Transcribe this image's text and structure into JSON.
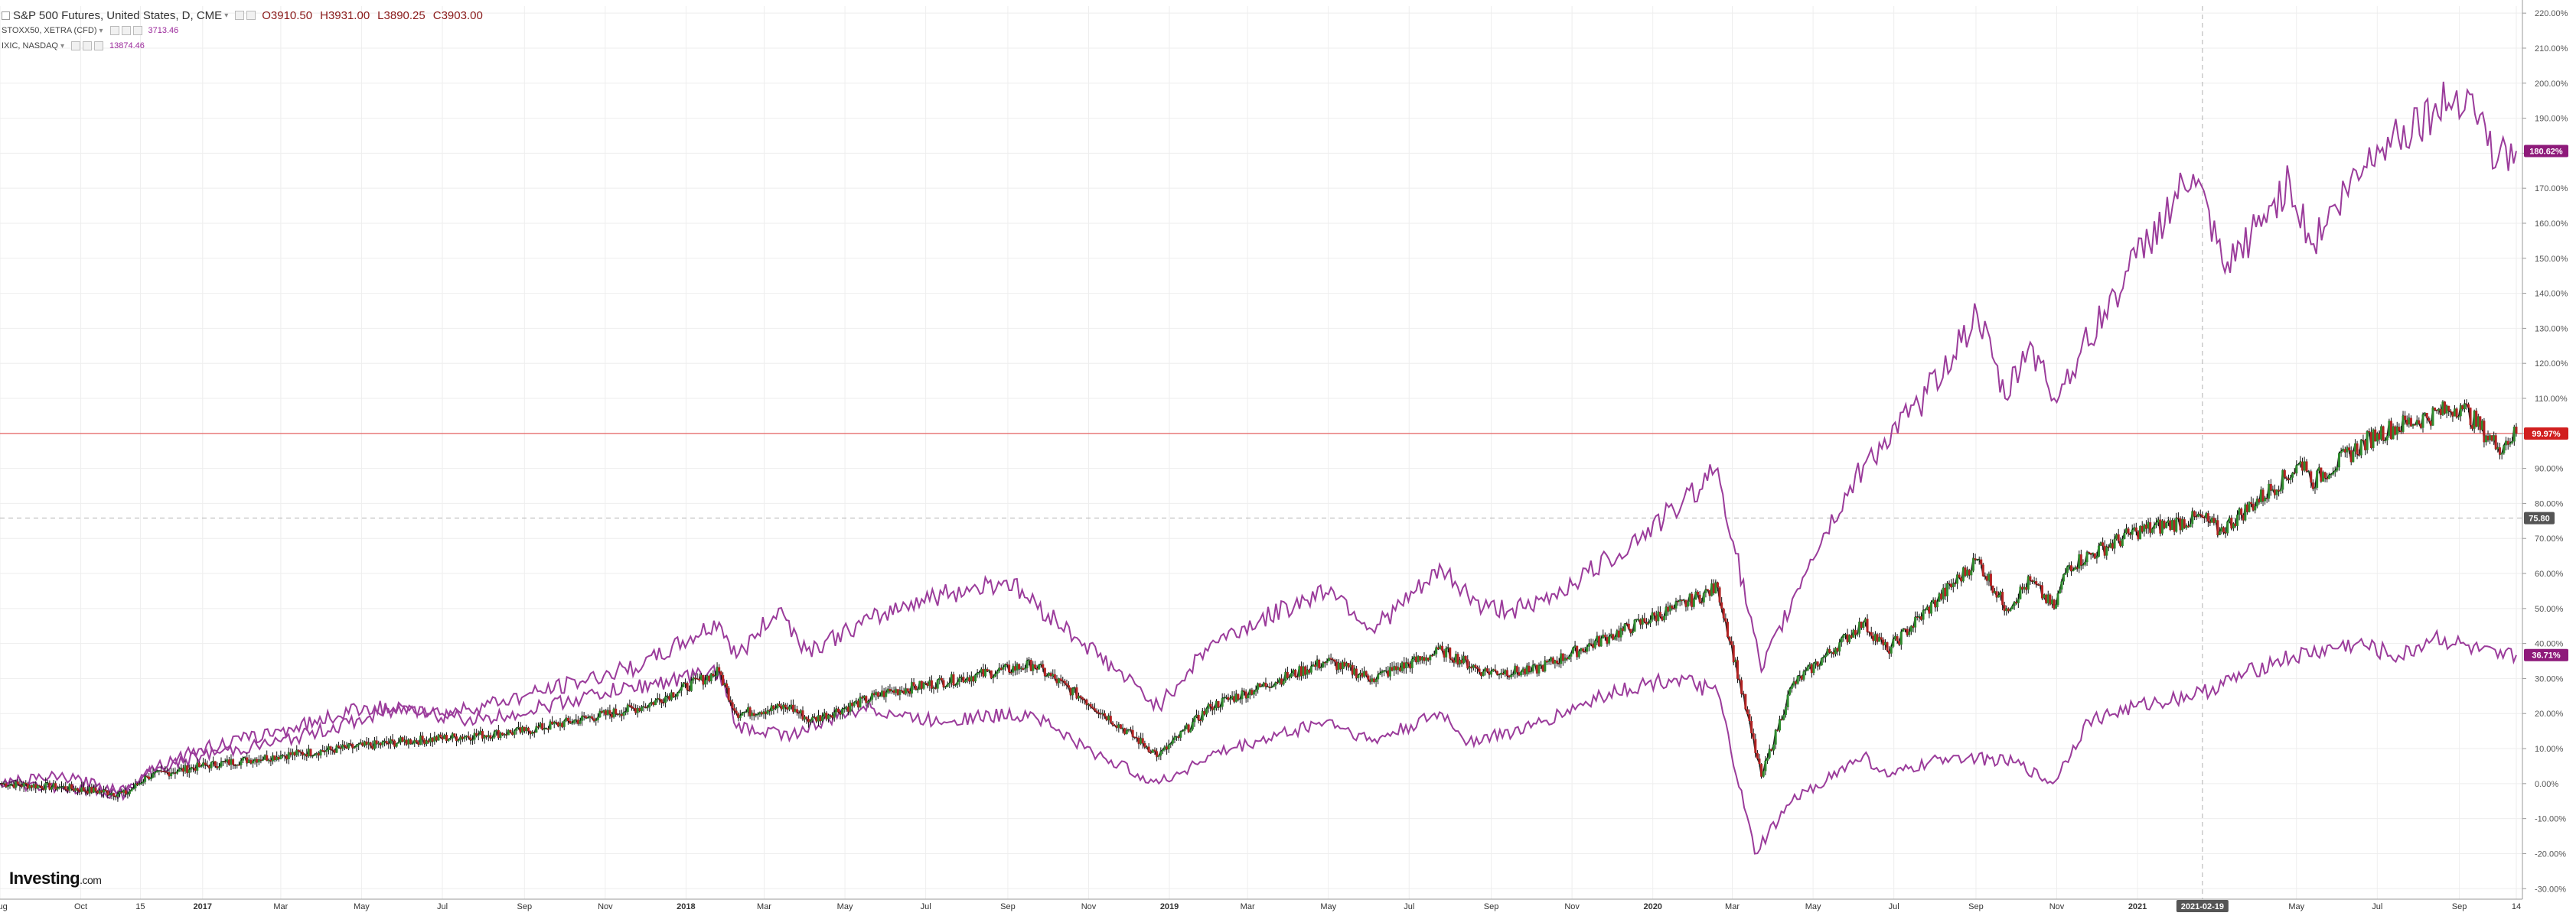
{
  "legend": {
    "main": {
      "title": "S&P 500 Futures, United States, D, CME",
      "open": "O3910.50",
      "high": "H3931.00",
      "low": "L3890.25",
      "close": "C3903.00"
    },
    "series2": {
      "title": "STOXX50, XETRA (CFD)",
      "value": "3713.46"
    },
    "series3": {
      "title": "IXIC, NASDAQ",
      "value": "13874.46"
    }
  },
  "brand": {
    "name": "Investing",
    "suffix": ".com"
  },
  "colors": {
    "main_up": "#2e8b2e",
    "main_down": "#b22222",
    "main_line": "#1a1a1a",
    "compare": "#9b3c9b",
    "price_line": "#e35050",
    "grid": "#eeeeee",
    "tag_red": "#d11f1f",
    "tag_purple": "#8e1a7a",
    "tag_dark": "#555555"
  },
  "chart_data": {
    "type": "line",
    "title": "S&P 500 Futures, United States, D, CME",
    "y_unit": "% change",
    "ylim": [
      -33,
      222
    ],
    "y_ticks": [
      "220.00%",
      "210.00%",
      "200.00%",
      "190.00%",
      "180.00%",
      "170.00%",
      "160.00%",
      "150.00%",
      "140.00%",
      "130.00%",
      "120.00%",
      "110.00%",
      "100.00%",
      "90.00%",
      "80.00%",
      "70.00%",
      "60.00%",
      "50.00%",
      "40.00%",
      "30.00%",
      "20.00%",
      "10.00%",
      "0.00%",
      "-10.00%",
      "-20.00%",
      "-30.00%"
    ],
    "x_range": [
      "2016-08-01",
      "2021-10-14"
    ],
    "x_ticks": [
      {
        "date": "2016-08-01",
        "label": "Aug"
      },
      {
        "date": "2016-10-01",
        "label": "Oct"
      },
      {
        "date": "2016-11-15",
        "label": "15"
      },
      {
        "date": "2017-01-01",
        "label": "2017"
      },
      {
        "date": "2017-03-01",
        "label": "Mar"
      },
      {
        "date": "2017-05-01",
        "label": "May"
      },
      {
        "date": "2017-07-01",
        "label": "Jul"
      },
      {
        "date": "2017-09-01",
        "label": "Sep"
      },
      {
        "date": "2017-11-01",
        "label": "Nov"
      },
      {
        "date": "2018-01-01",
        "label": "2018"
      },
      {
        "date": "2018-03-01",
        "label": "Mar"
      },
      {
        "date": "2018-05-01",
        "label": "May"
      },
      {
        "date": "2018-07-01",
        "label": "Jul"
      },
      {
        "date": "2018-09-01",
        "label": "Sep"
      },
      {
        "date": "2018-11-01",
        "label": "Nov"
      },
      {
        "date": "2019-01-01",
        "label": "2019"
      },
      {
        "date": "2019-03-01",
        "label": "Mar"
      },
      {
        "date": "2019-05-01",
        "label": "May"
      },
      {
        "date": "2019-07-01",
        "label": "Jul"
      },
      {
        "date": "2019-09-01",
        "label": "Sep"
      },
      {
        "date": "2019-11-01",
        "label": "Nov"
      },
      {
        "date": "2020-01-01",
        "label": "2020"
      },
      {
        "date": "2020-03-01",
        "label": "Mar"
      },
      {
        "date": "2020-05-01",
        "label": "May"
      },
      {
        "date": "2020-07-01",
        "label": "Jul"
      },
      {
        "date": "2020-09-01",
        "label": "Sep"
      },
      {
        "date": "2020-11-01",
        "label": "Nov"
      },
      {
        "date": "2021-01-01",
        "label": "2021"
      },
      {
        "date": "2021-05-01",
        "label": "May"
      },
      {
        "date": "2021-07-01",
        "label": "Jul"
      },
      {
        "date": "2021-09-01",
        "label": "Sep"
      },
      {
        "date": "2021-10-14",
        "label": "14"
      }
    ],
    "crosshair": {
      "date": "2021-02-19",
      "label": "2021-02-19",
      "y_value": 75.8,
      "y_label": "75.80"
    },
    "last_value_tags": [
      {
        "series": "IXIC, NASDAQ",
        "label": "180.62%",
        "value": 180.62
      },
      {
        "series": "S&P 500 Futures",
        "label": "99.97%",
        "value": 99.97
      },
      {
        "series": "STOXX50, XETRA (CFD)",
        "label": "36.71%",
        "value": 36.71
      }
    ],
    "series": [
      {
        "name": "S&P 500 Futures, United States, D, CME",
        "style": "candles",
        "points": [
          [
            "2016-08-01",
            0
          ],
          [
            "2016-09-15",
            -1
          ],
          [
            "2016-11-04",
            -3
          ],
          [
            "2016-11-20",
            2
          ],
          [
            "2016-12-31",
            5
          ],
          [
            "2017-03-01",
            8
          ],
          [
            "2017-06-01",
            12
          ],
          [
            "2017-09-01",
            15
          ],
          [
            "2017-11-30",
            22
          ],
          [
            "2018-01-26",
            32
          ],
          [
            "2018-02-08",
            20
          ],
          [
            "2018-03-20",
            22
          ],
          [
            "2018-04-05",
            18
          ],
          [
            "2018-06-01",
            26
          ],
          [
            "2018-09-20",
            34
          ],
          [
            "2018-10-29",
            24
          ],
          [
            "2018-12-24",
            8
          ],
          [
            "2019-02-01",
            22
          ],
          [
            "2019-04-30",
            35
          ],
          [
            "2019-06-03",
            30
          ],
          [
            "2019-07-26",
            38
          ],
          [
            "2019-08-26",
            32
          ],
          [
            "2019-10-01",
            32
          ],
          [
            "2019-11-29",
            42
          ],
          [
            "2020-01-17",
            50
          ],
          [
            "2020-02-19",
            56
          ],
          [
            "2020-03-23",
            2
          ],
          [
            "2020-04-15",
            28
          ],
          [
            "2020-06-08",
            46
          ],
          [
            "2020-06-26",
            38
          ],
          [
            "2020-09-02",
            64
          ],
          [
            "2020-09-24",
            50
          ],
          [
            "2020-10-12",
            58
          ],
          [
            "2020-10-30",
            50
          ],
          [
            "2020-11-09",
            62
          ],
          [
            "2020-12-31",
            72
          ],
          [
            "2021-02-19",
            76
          ],
          [
            "2021-03-04",
            72
          ],
          [
            "2021-05-07",
            92
          ],
          [
            "2021-05-12",
            86
          ],
          [
            "2021-07-01",
            100
          ],
          [
            "2021-09-02",
            108
          ],
          [
            "2021-09-30",
            96
          ],
          [
            "2021-10-14",
            99.97
          ]
        ]
      },
      {
        "name": "IXIC, NASDAQ",
        "style": "line",
        "points": [
          [
            "2016-08-01",
            0
          ],
          [
            "2016-09-15",
            -1
          ],
          [
            "2016-11-04",
            -3
          ],
          [
            "2016-11-20",
            3
          ],
          [
            "2016-12-31",
            8
          ],
          [
            "2017-03-01",
            12
          ],
          [
            "2017-06-08",
            22
          ],
          [
            "2017-07-01",
            20
          ],
          [
            "2017-09-01",
            25
          ],
          [
            "2017-11-30",
            34
          ],
          [
            "2018-01-26",
            46
          ],
          [
            "2018-02-08",
            36
          ],
          [
            "2018-03-12",
            50
          ],
          [
            "2018-04-02",
            38
          ],
          [
            "2018-06-20",
            52
          ],
          [
            "2018-08-31",
            58
          ],
          [
            "2018-10-29",
            40
          ],
          [
            "2018-12-24",
            22
          ],
          [
            "2019-02-01",
            40
          ],
          [
            "2019-05-03",
            56
          ],
          [
            "2019-06-03",
            44
          ],
          [
            "2019-07-26",
            61
          ],
          [
            "2019-08-26",
            50
          ],
          [
            "2019-10-01",
            50
          ],
          [
            "2019-11-29",
            64
          ],
          [
            "2020-01-17",
            78
          ],
          [
            "2020-02-19",
            90
          ],
          [
            "2020-03-23",
            32
          ],
          [
            "2020-04-29",
            64
          ],
          [
            "2020-06-10",
            92
          ],
          [
            "2020-07-20",
            108
          ],
          [
            "2020-09-02",
            134
          ],
          [
            "2020-09-23",
            110
          ],
          [
            "2020-10-12",
            126
          ],
          [
            "2020-10-30",
            110
          ],
          [
            "2020-12-31",
            150
          ],
          [
            "2021-02-12",
            174
          ],
          [
            "2021-03-08",
            146
          ],
          [
            "2021-04-26",
            172
          ],
          [
            "2021-05-12",
            154
          ],
          [
            "2021-07-01",
            182
          ],
          [
            "2021-09-07",
            198
          ],
          [
            "2021-09-30",
            178
          ],
          [
            "2021-10-14",
            180.62
          ]
        ]
      },
      {
        "name": "STOXX50, XETRA (CFD)",
        "style": "line",
        "points": [
          [
            "2016-08-01",
            0
          ],
          [
            "2016-09-15",
            2
          ],
          [
            "2016-11-04",
            -2
          ],
          [
            "2016-11-20",
            4
          ],
          [
            "2016-12-31",
            10
          ],
          [
            "2017-03-01",
            15
          ],
          [
            "2017-05-05",
            22
          ],
          [
            "2017-06-20",
            20
          ],
          [
            "2017-08-01",
            18
          ],
          [
            "2017-11-01",
            26
          ],
          [
            "2018-01-26",
            32
          ],
          [
            "2018-02-08",
            16
          ],
          [
            "2018-03-22",
            14
          ],
          [
            "2018-05-15",
            22
          ],
          [
            "2018-07-01",
            18
          ],
          [
            "2018-09-20",
            20
          ],
          [
            "2018-10-29",
            10
          ],
          [
            "2018-12-24",
            0
          ],
          [
            "2019-02-01",
            8
          ],
          [
            "2019-04-30",
            18
          ],
          [
            "2019-06-03",
            12
          ],
          [
            "2019-07-26",
            20
          ],
          [
            "2019-08-15",
            12
          ],
          [
            "2019-10-01",
            16
          ],
          [
            "2019-11-29",
            26
          ],
          [
            "2020-01-17",
            30
          ],
          [
            "2020-02-19",
            26
          ],
          [
            "2020-03-18",
            -20
          ],
          [
            "2020-04-15",
            -5
          ],
          [
            "2020-06-08",
            8
          ],
          [
            "2020-06-26",
            2
          ],
          [
            "2020-08-15",
            8
          ],
          [
            "2020-10-01",
            6
          ],
          [
            "2020-10-29",
            0
          ],
          [
            "2020-11-25",
            18
          ],
          [
            "2020-12-31",
            22
          ],
          [
            "2021-02-19",
            26
          ],
          [
            "2021-04-15",
            35
          ],
          [
            "2021-06-15",
            40
          ],
          [
            "2021-07-19",
            36
          ],
          [
            "2021-08-13",
            42
          ],
          [
            "2021-09-30",
            36
          ],
          [
            "2021-10-14",
            36.71
          ]
        ]
      }
    ]
  }
}
